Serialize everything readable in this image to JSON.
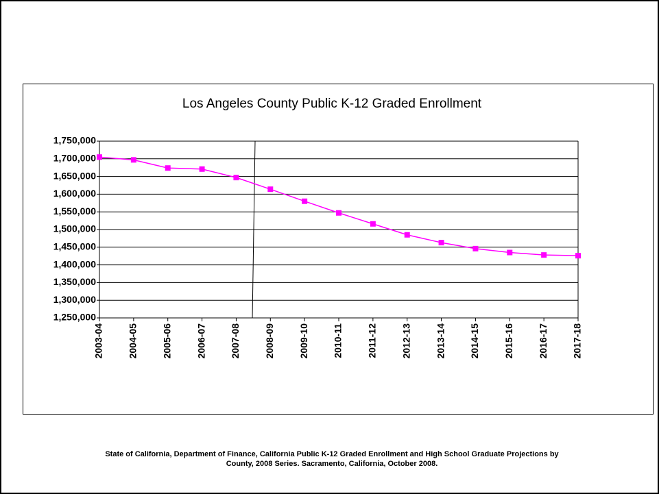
{
  "chart_data": {
    "type": "line",
    "title": "Los Angeles County Public K-12 Graded Enrollment",
    "categories": [
      "2003-04",
      "2004-05",
      "2005-06",
      "2006-07",
      "2007-08",
      "2008-09",
      "2009-10",
      "2010-11",
      "2011-12",
      "2012-13",
      "2013-14",
      "2014-15",
      "2015-16",
      "2016-17",
      "2017-18"
    ],
    "values": [
      1705000,
      1697000,
      1674000,
      1671000,
      1647000,
      1614000,
      1580000,
      1547000,
      1516000,
      1485000,
      1463000,
      1446000,
      1435000,
      1428000,
      1426000
    ],
    "color": "#ff00ff",
    "ylim": [
      1250000,
      1750000
    ],
    "yticks": [
      {
        "value": 1250000,
        "label": "1,250,000"
      },
      {
        "value": 1300000,
        "label": "1,300,000"
      },
      {
        "value": 1350000,
        "label": "1,350,000"
      },
      {
        "value": 1400000,
        "label": "1,400,000"
      },
      {
        "value": 1450000,
        "label": "1,450,000"
      },
      {
        "value": 1500000,
        "label": "1,500,000"
      },
      {
        "value": 1550000,
        "label": "1,550,000"
      },
      {
        "value": 1600000,
        "label": "1,600,000"
      },
      {
        "value": 1650000,
        "label": "1,650,000"
      },
      {
        "value": 1700000,
        "label": "1,700,000"
      },
      {
        "value": 1750000,
        "label": "1,750,000"
      }
    ],
    "grid": true,
    "source": [
      "State of California, Department of Finance, California Public K-12 Graded Enrollment and High School Graduate Projections by",
      "County, 2008 Series. Sacramento, California, October 2008."
    ]
  }
}
